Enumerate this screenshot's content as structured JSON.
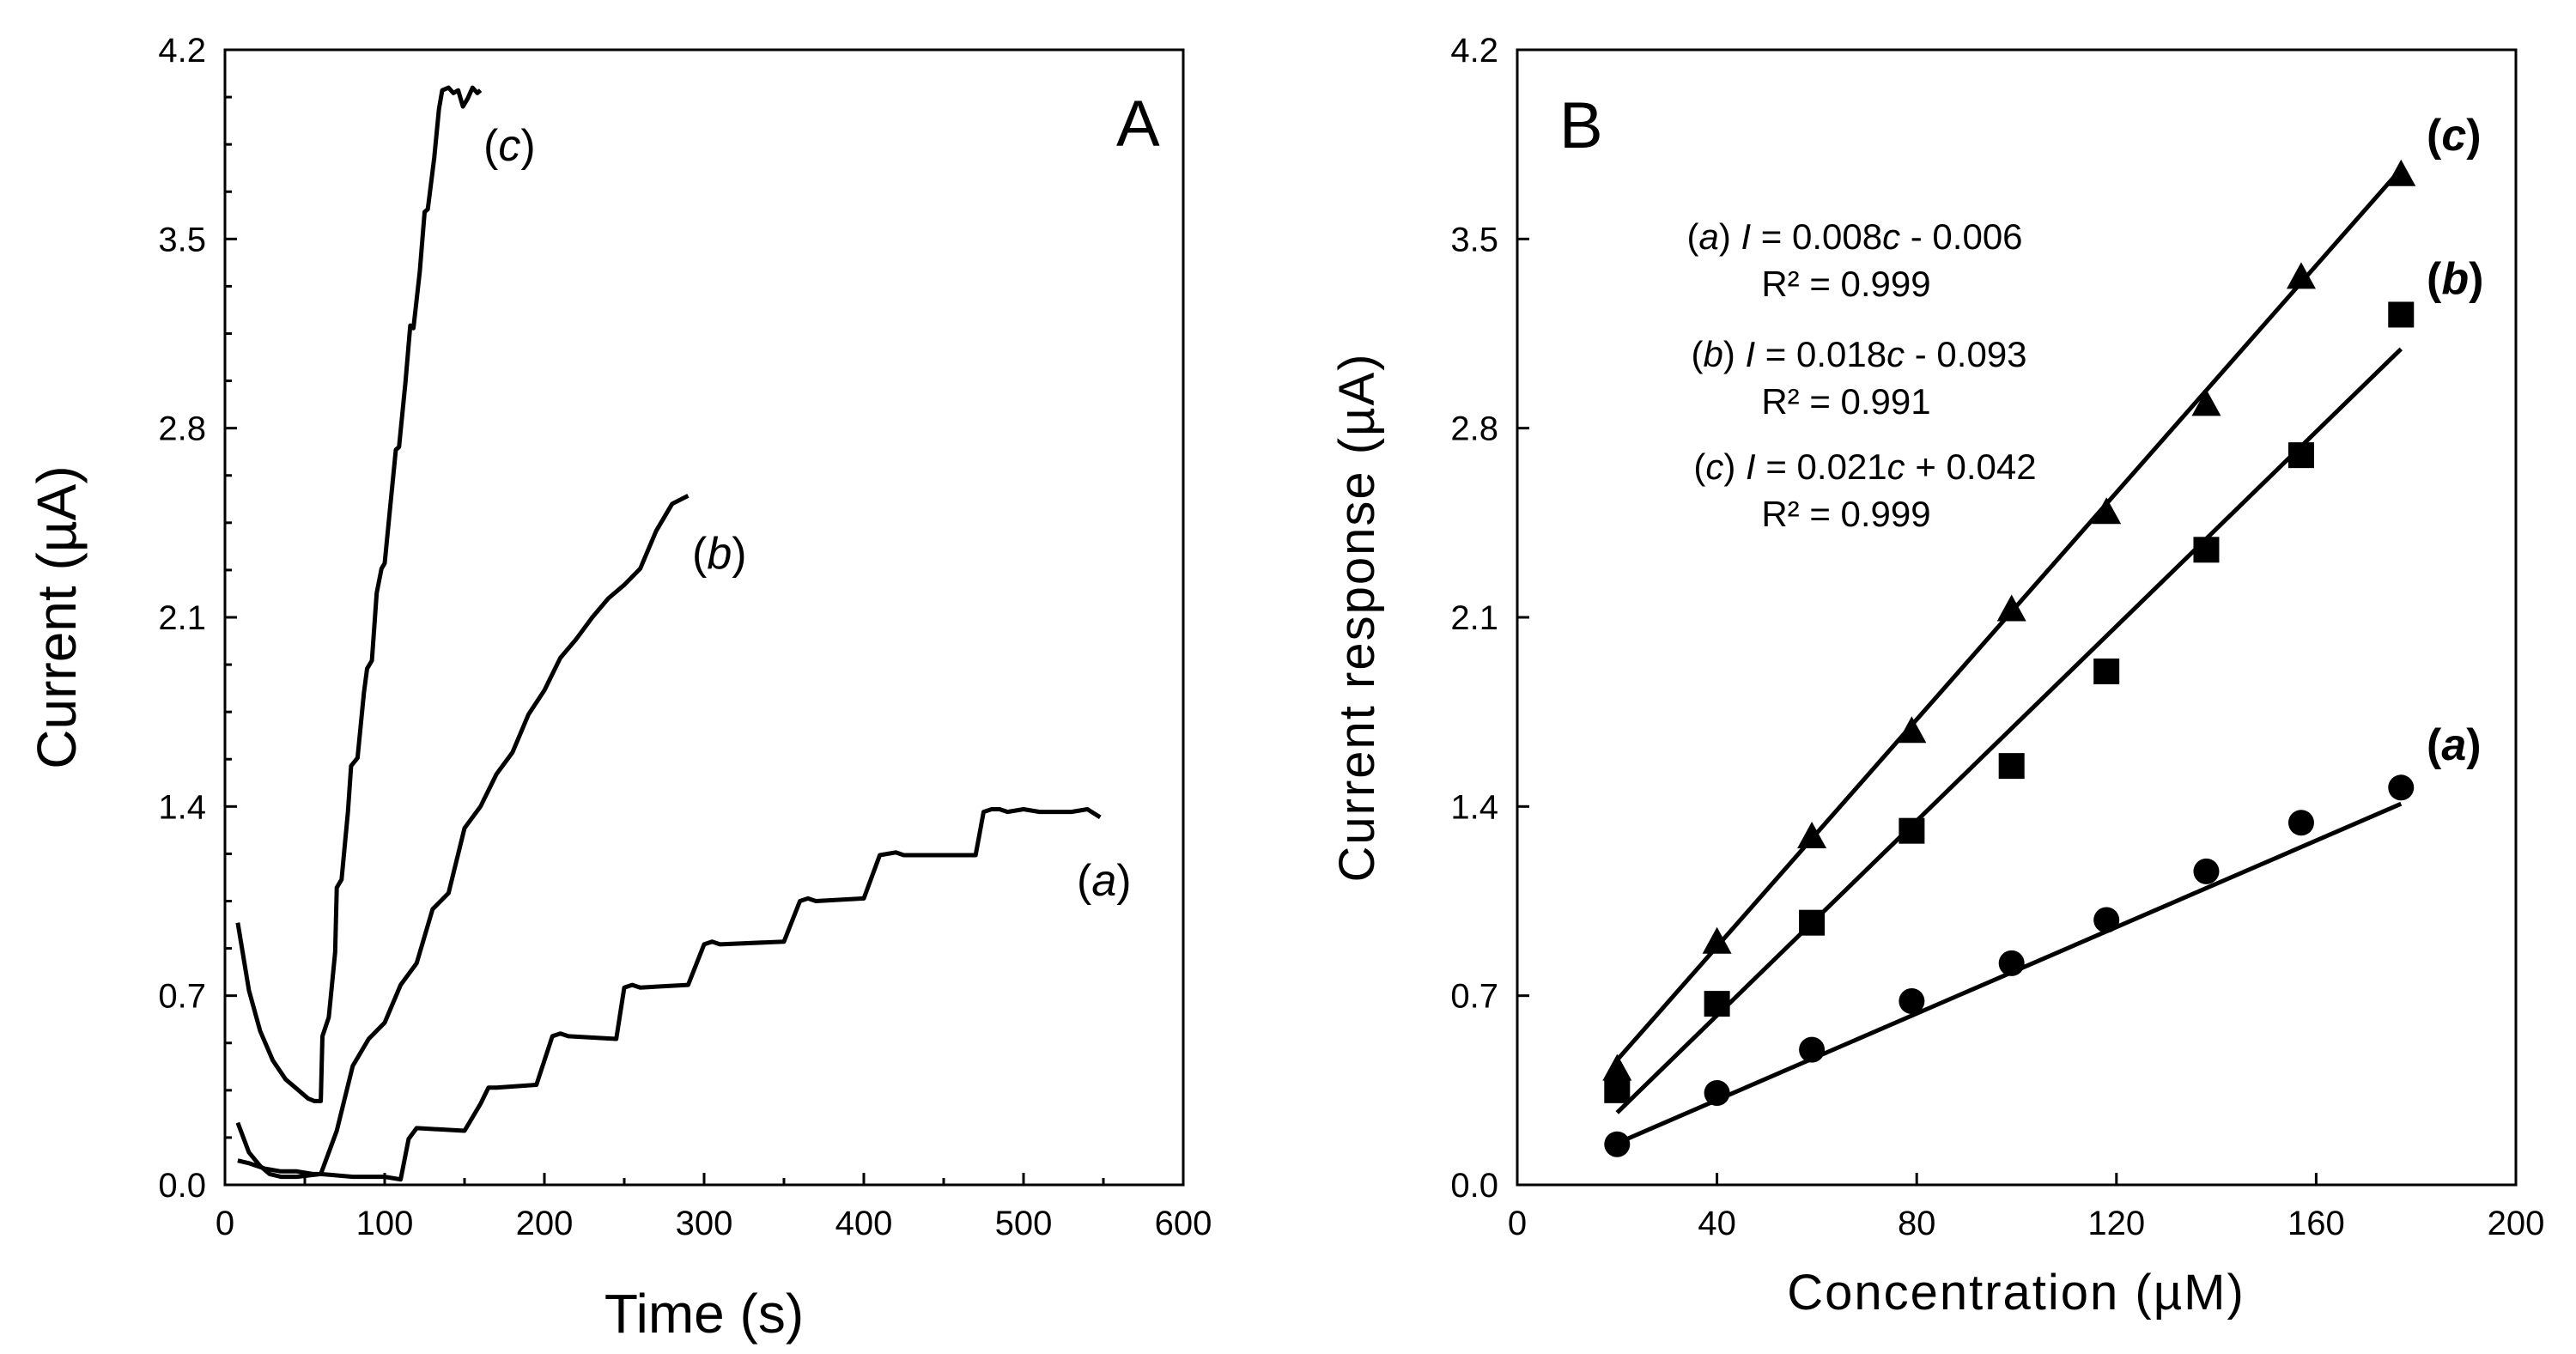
{
  "chart_data": [
    {
      "panel": "A",
      "type": "line",
      "xlabel": "Time (s)",
      "ylabel": "Current (µA)",
      "xlim": [
        0,
        600
      ],
      "ylim": [
        0,
        4.2
      ],
      "xticks": [
        0,
        100,
        200,
        300,
        400,
        500,
        600
      ],
      "yticks": [
        0.0,
        0.7,
        1.4,
        2.1,
        2.8,
        3.5,
        4.2
      ],
      "ytick_labels": [
        "0.0",
        "0.7",
        "1.4",
        "2.1",
        "2.8",
        "3.5",
        "4.2"
      ],
      "series": [
        {
          "name": "(c)",
          "label": "c",
          "x": [
            8,
            15,
            22,
            30,
            38,
            46,
            52,
            56,
            60,
            61,
            65,
            69,
            70,
            73,
            77,
            79,
            83,
            87,
            89,
            92,
            95,
            98,
            100,
            104,
            107,
            109,
            113,
            116,
            118,
            122,
            125,
            127,
            131,
            134,
            136,
            140,
            143,
            146,
            149,
            152,
            155,
            158,
            160
          ],
          "y": [
            0.97,
            0.72,
            0.57,
            0.46,
            0.39,
            0.35,
            0.32,
            0.31,
            0.31,
            0.55,
            0.62,
            0.86,
            1.1,
            1.13,
            1.38,
            1.55,
            1.58,
            1.82,
            1.91,
            1.94,
            2.19,
            2.28,
            2.3,
            2.54,
            2.72,
            2.73,
            2.97,
            3.18,
            3.17,
            3.38,
            3.6,
            3.61,
            3.8,
            3.98,
            4.05,
            4.06,
            4.04,
            4.05,
            3.99,
            4.02,
            4.06,
            4.04,
            4.05
          ]
        },
        {
          "name": "(b)",
          "label": "b",
          "x": [
            8,
            15,
            25,
            35,
            45,
            55,
            60,
            70,
            80,
            90,
            100,
            110,
            120,
            130,
            140,
            150,
            160,
            170,
            180,
            190,
            200,
            210,
            220,
            230,
            240,
            250,
            260,
            270,
            280,
            290
          ],
          "y": [
            0.09,
            0.08,
            0.06,
            0.05,
            0.05,
            0.04,
            0.04,
            0.2,
            0.44,
            0.54,
            0.6,
            0.74,
            0.82,
            1.02,
            1.08,
            1.32,
            1.4,
            1.52,
            1.6,
            1.74,
            1.83,
            1.95,
            2.02,
            2.1,
            2.17,
            2.22,
            2.28,
            2.42,
            2.52,
            2.55
          ]
        },
        {
          "name": "(a)",
          "label": "a",
          "x": [
            8,
            15,
            22,
            28,
            35,
            45,
            60,
            80,
            100,
            110,
            115,
            120,
            150,
            160,
            165,
            170,
            195,
            205,
            210,
            215,
            245,
            250,
            255,
            260,
            290,
            300,
            305,
            310,
            350,
            360,
            365,
            370,
            400,
            410,
            420,
            425,
            470,
            475,
            480,
            485,
            490,
            500,
            510,
            520,
            530,
            540,
            548
          ],
          "y": [
            0.23,
            0.12,
            0.07,
            0.04,
            0.03,
            0.03,
            0.04,
            0.03,
            0.03,
            0.02,
            0.17,
            0.21,
            0.2,
            0.3,
            0.36,
            0.36,
            0.37,
            0.55,
            0.56,
            0.55,
            0.54,
            0.73,
            0.74,
            0.73,
            0.74,
            0.89,
            0.9,
            0.89,
            0.9,
            1.05,
            1.06,
            1.05,
            1.06,
            1.22,
            1.23,
            1.22,
            1.22,
            1.38,
            1.39,
            1.39,
            1.38,
            1.39,
            1.38,
            1.38,
            1.38,
            1.39,
            1.36
          ]
        }
      ]
    },
    {
      "panel": "B",
      "type": "scatter",
      "xlabel": "Concentration (µM)",
      "ylabel": "Current response (µA)",
      "xlim": [
        0,
        200
      ],
      "ylim": [
        0,
        4.2
      ],
      "xticks": [
        0,
        40,
        80,
        120,
        160,
        200
      ],
      "yticks": [
        0.0,
        0.7,
        1.4,
        2.1,
        2.8,
        3.5,
        4.2
      ],
      "ytick_labels": [
        "0.0",
        "0.7",
        "1.4",
        "2.1",
        "2.8",
        "3.5",
        "4.2"
      ],
      "series": [
        {
          "name": "(a)",
          "label": "a",
          "marker": "circle",
          "x": [
            20,
            40,
            59,
            79,
            99,
            118,
            138,
            157,
            177
          ],
          "y": [
            0.15,
            0.34,
            0.5,
            0.68,
            0.82,
            0.98,
            1.16,
            1.34,
            1.47
          ],
          "fit": {
            "slope": 0.008,
            "intercept": -0.006,
            "x_range": [
              20,
              177
            ]
          }
        },
        {
          "name": "(b)",
          "label": "b",
          "marker": "square",
          "x": [
            20,
            40,
            59,
            79,
            99,
            118,
            138,
            157,
            177
          ],
          "y": [
            0.35,
            0.67,
            0.97,
            1.31,
            1.55,
            1.9,
            2.35,
            2.7,
            3.22
          ],
          "fit": {
            "slope": 0.018,
            "intercept": -0.093,
            "x_range": [
              20,
              177
            ]
          }
        },
        {
          "name": "(c)",
          "label": "c",
          "marker": "triangle",
          "x": [
            20,
            40,
            59,
            79,
            99,
            118,
            138,
            157,
            177
          ],
          "y": [
            0.43,
            0.9,
            1.29,
            1.68,
            2.13,
            2.49,
            2.89,
            3.36,
            3.74
          ],
          "fit": {
            "slope": 0.021,
            "intercept": 0.042,
            "x_range": [
              20,
              177
            ]
          }
        }
      ],
      "equations": [
        {
          "prefix": "(",
          "series": "a",
          "mid": ") ",
          "var": "I",
          "eq": " = 0.008",
          "c": "c",
          "tail": " - 0.006",
          "r2": "R² = 0.999"
        },
        {
          "prefix": "(",
          "series": "b",
          "mid": ") ",
          "var": "I",
          "eq": " = 0.018",
          "c": "c",
          "tail": " - 0.093",
          "r2": "R² = 0.991"
        },
        {
          "prefix": "(",
          "series": "c",
          "mid": ") ",
          "var": "I",
          "eq": " = 0.021",
          "c": "c",
          "tail": " + 0.042",
          "r2": "R² = 0.999"
        }
      ]
    }
  ],
  "panel_a": {
    "letter": "A",
    "x_title": "Time (s)",
    "y_title": "Current (µA)",
    "labels": {
      "c": {
        "open": "(",
        "letter": "c",
        "close": ")"
      },
      "b": {
        "open": "(",
        "letter": "b",
        "close": ")"
      },
      "a": {
        "open": "(",
        "letter": "a",
        "close": ")"
      }
    }
  },
  "panel_b": {
    "letter": "B",
    "x_title": "Concentration (µM)",
    "y_title": "Current response (µA)",
    "labels": {
      "c": {
        "open": "(",
        "letter": "c",
        "close": ")"
      },
      "b": {
        "open": "(",
        "letter": "b",
        "close": ")"
      },
      "a": {
        "open": "(",
        "letter": "a",
        "close": ")"
      }
    }
  }
}
